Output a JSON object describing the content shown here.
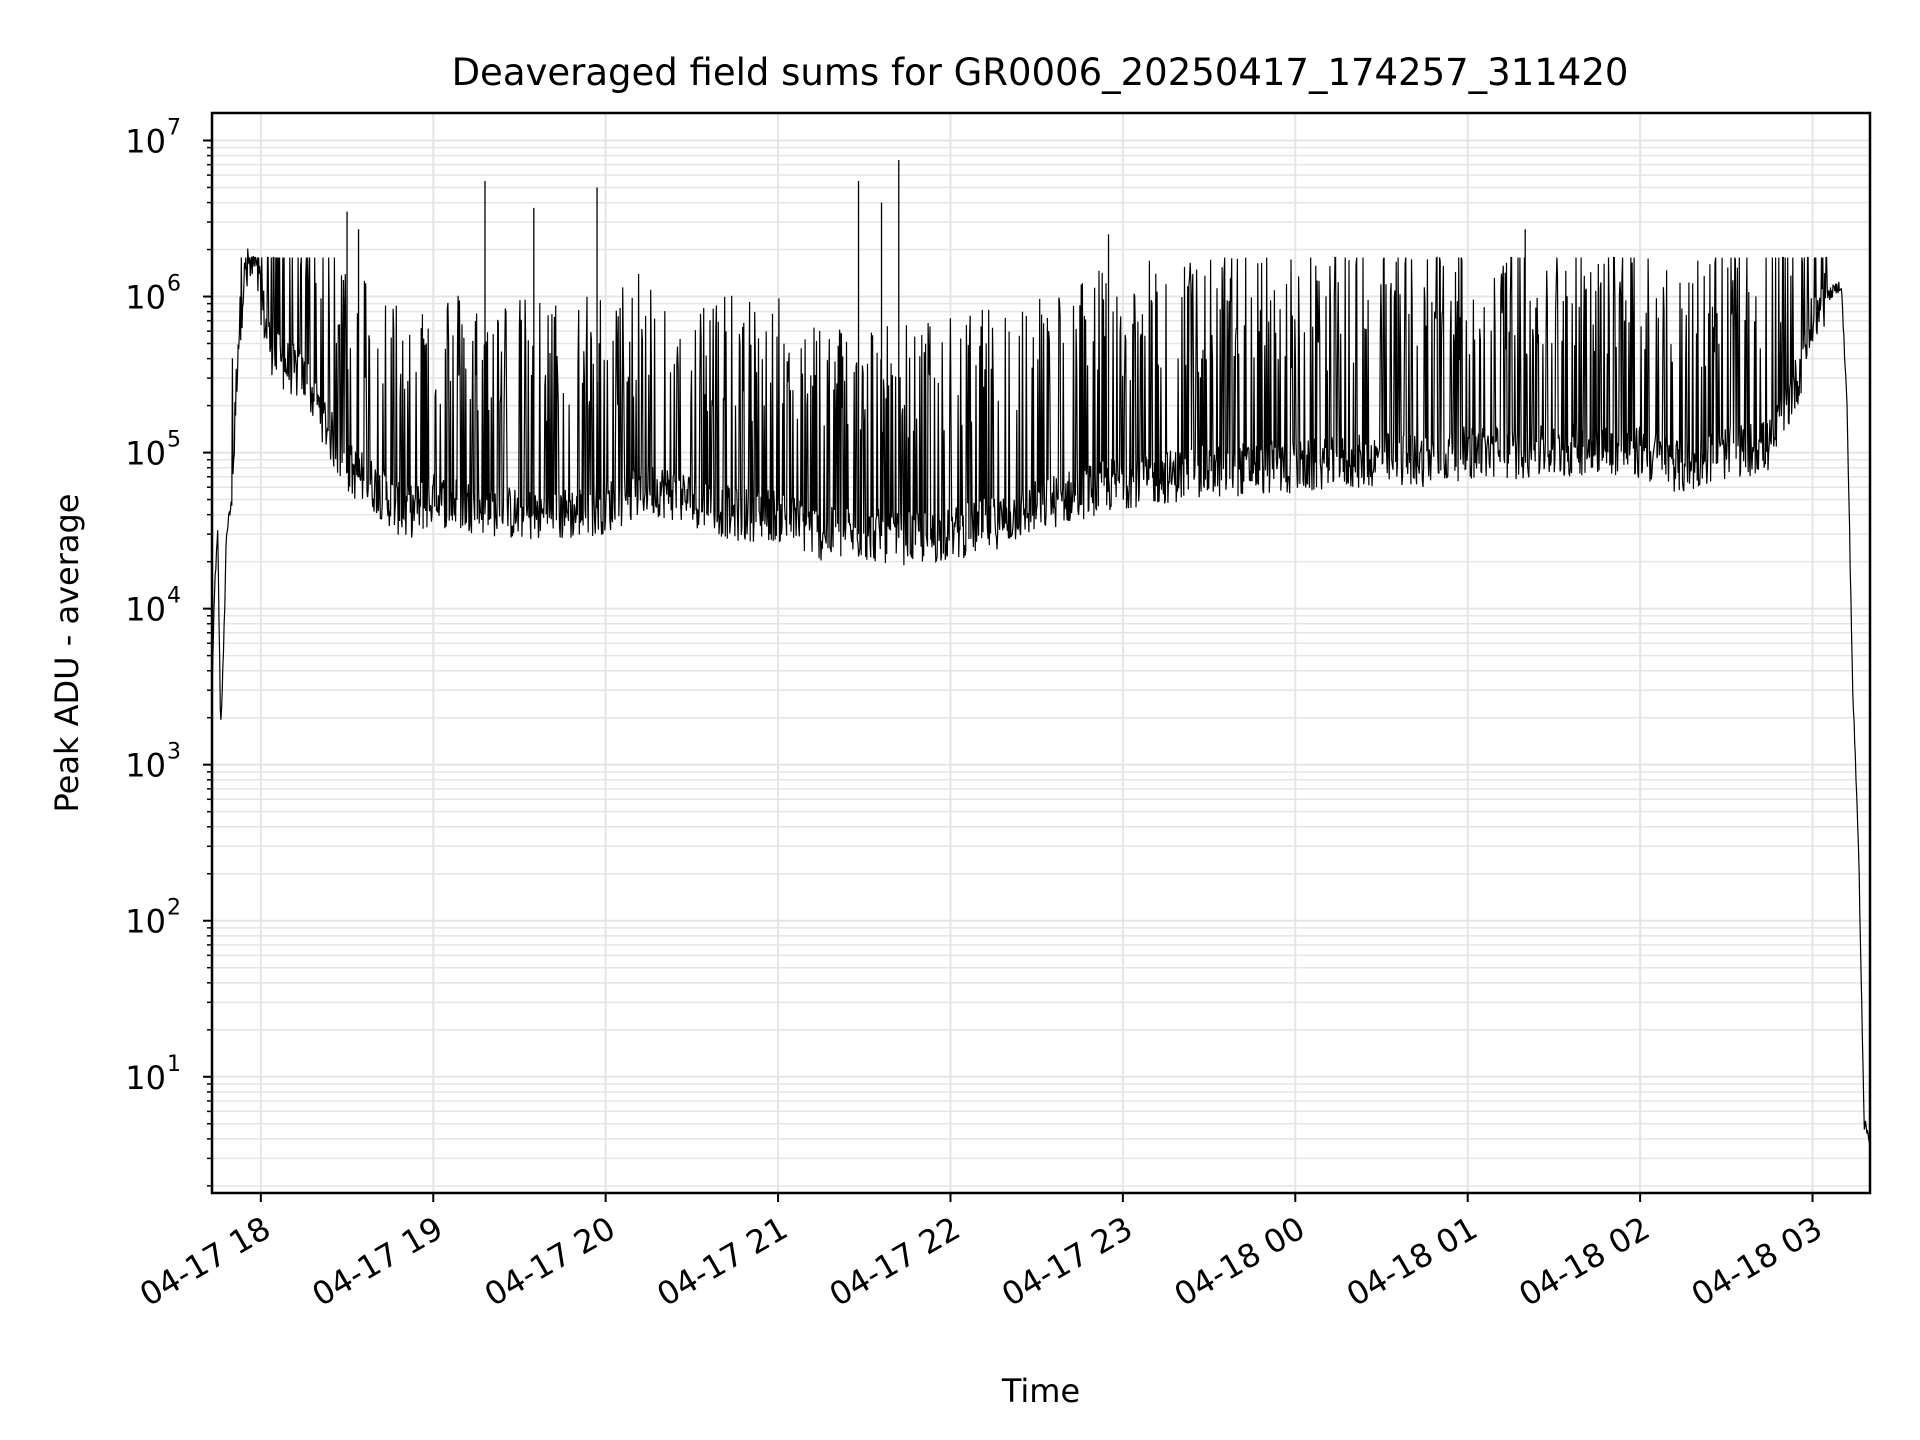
{
  "chart_data": {
    "type": "line",
    "title": "Deaveraged field sums for GR0006_20250417_174257_311420",
    "xlabel": "Time",
    "ylabel": "Peak ADU - average",
    "yscale": "log",
    "ylim": [
      1.8,
      15000000
    ],
    "xlim": [
      "04-17 17:43",
      "04-18 03:20"
    ],
    "grid": true,
    "line_color": "#000000",
    "grid_color": "#e5e5e5",
    "x_ticks": [
      "04-17 18",
      "04-17 19",
      "04-17 20",
      "04-17 21",
      "04-17 22",
      "04-17 23",
      "04-18 00",
      "04-18 01",
      "04-18 02",
      "04-18 03"
    ],
    "y_ticks": [
      {
        "base": "10",
        "exp": "1",
        "value": 10
      },
      {
        "base": "10",
        "exp": "2",
        "value": 100
      },
      {
        "base": "10",
        "exp": "3",
        "value": 1000
      },
      {
        "base": "10",
        "exp": "4",
        "value": 10000
      },
      {
        "base": "10",
        "exp": "5",
        "value": 100000
      },
      {
        "base": "10",
        "exp": "6",
        "value": 1000000
      },
      {
        "base": "10",
        "exp": "7",
        "value": 10000000
      }
    ],
    "series": [
      {
        "x": [
          "04-17 17:43",
          "04-17 17:44",
          "04-17 17:45",
          "04-17 17:46",
          "04-17 17:47",
          "04-17 17:48",
          "04-17 17:50",
          "04-17 17:52",
          "04-17 17:54",
          "04-17 17:56",
          "04-17 17:58",
          "04-17 18:00",
          "04-17 18:02",
          "04-17 18:05",
          "04-17 18:10",
          "04-17 18:15",
          "04-17 18:20",
          "04-17 18:25",
          "04-17 18:30",
          "04-17 18:40",
          "04-17 18:50",
          "04-17 19:00",
          "04-17 19:15",
          "04-17 19:30",
          "04-17 19:45",
          "04-17 20:00",
          "04-17 20:15",
          "04-17 20:30",
          "04-17 20:45",
          "04-17 21:00",
          "04-17 21:15",
          "04-17 21:30",
          "04-17 21:45",
          "04-17 22:00",
          "04-17 22:15",
          "04-17 22:30",
          "04-17 22:45",
          "04-17 23:00",
          "04-17 23:15",
          "04-17 23:30",
          "04-17 23:45",
          "04-18 00:00",
          "04-18 00:15",
          "04-18 00:30",
          "04-18 00:45",
          "04-18 01:00",
          "04-18 01:15",
          "04-18 01:30",
          "04-18 01:45",
          "04-18 02:00",
          "04-18 02:15",
          "04-18 02:30",
          "04-18 02:45",
          "04-18 02:55",
          "04-18 03:00",
          "04-18 03:05",
          "04-18 03:10",
          "04-18 03:12",
          "04-18 03:14",
          "04-18 03:16",
          "04-18 03:18",
          "04-18 03:20"
        ],
        "y": [
          3000,
          15000,
          30000,
          1700,
          5000,
          30000,
          50000,
          500000,
          1200000,
          1500000,
          1300000,
          1000000,
          600000,
          400000,
          350000,
          300000,
          200000,
          120000,
          80000,
          60000,
          40000,
          50000,
          45000,
          40000,
          40000,
          45000,
          60000,
          50000,
          40000,
          40000,
          30000,
          30000,
          28000,
          30000,
          35000,
          45000,
          55000,
          65000,
          70000,
          75000,
          80000,
          80000,
          85000,
          90000,
          90000,
          100000,
          100000,
          100000,
          110000,
          100000,
          80000,
          100000,
          110000,
          300000,
          700000,
          1000000,
          1200000,
          200000,
          3000,
          300,
          5,
          4
        ],
        "spikes_y": [
          3500000,
          2700000,
          5500000,
          3700000,
          5000000,
          5500000,
          4000000,
          7500000,
          2500000,
          2700000
        ]
      }
    ]
  }
}
